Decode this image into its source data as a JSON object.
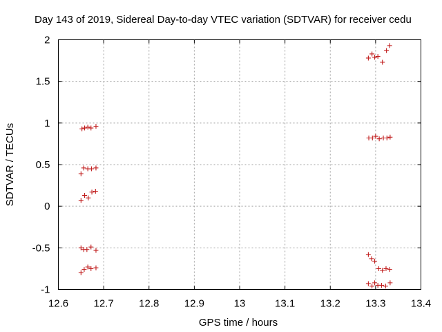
{
  "chart_data": {
    "type": "scatter",
    "title": "Day 143 of 2019, Sidereal Day-to-day VTEC variation (SDTVAR) for receiver cedu",
    "xlabel": "GPS time / hours",
    "ylabel": "SDTVAR / TECUs",
    "xlim": [
      12.6,
      13.4
    ],
    "ylim": [
      -1,
      2
    ],
    "x_ticks": [
      "12.6",
      "12.7",
      "12.8",
      "12.9",
      "13",
      "13.1",
      "13.2",
      "13.3",
      "13.4"
    ],
    "y_ticks": [
      "-1",
      "-0.5",
      "0",
      "0.5",
      "1",
      "1.5",
      "2"
    ],
    "grid": true,
    "marker": "+",
    "marker_color": "#c01a1a",
    "series": [
      {
        "name": "SDTVAR",
        "points": [
          [
            12.652,
            0.93
          ],
          [
            12.658,
            0.94
          ],
          [
            12.665,
            0.95
          ],
          [
            12.672,
            0.94
          ],
          [
            12.683,
            0.96
          ],
          [
            12.65,
            0.39
          ],
          [
            12.656,
            0.46
          ],
          [
            12.665,
            0.45
          ],
          [
            12.673,
            0.45
          ],
          [
            12.683,
            0.46
          ],
          [
            12.65,
            0.07
          ],
          [
            12.658,
            0.13
          ],
          [
            12.666,
            0.1
          ],
          [
            12.674,
            0.17
          ],
          [
            12.682,
            0.18
          ],
          [
            12.65,
            -0.5
          ],
          [
            12.656,
            -0.52
          ],
          [
            12.663,
            -0.52
          ],
          [
            12.672,
            -0.49
          ],
          [
            12.683,
            -0.53
          ],
          [
            12.65,
            -0.8
          ],
          [
            12.657,
            -0.76
          ],
          [
            12.665,
            -0.73
          ],
          [
            12.672,
            -0.75
          ],
          [
            12.683,
            -0.74
          ],
          [
            13.284,
            1.78
          ],
          [
            13.292,
            1.83
          ],
          [
            13.298,
            1.79
          ],
          [
            13.305,
            1.8
          ],
          [
            13.315,
            1.73
          ],
          [
            13.324,
            1.87
          ],
          [
            13.331,
            1.93
          ],
          [
            13.285,
            0.82
          ],
          [
            13.293,
            0.82
          ],
          [
            13.3,
            0.84
          ],
          [
            13.308,
            0.81
          ],
          [
            13.317,
            0.82
          ],
          [
            13.325,
            0.82
          ],
          [
            13.332,
            0.83
          ],
          [
            13.284,
            -0.58
          ],
          [
            13.291,
            -0.63
          ],
          [
            13.298,
            -0.66
          ],
          [
            13.307,
            -0.75
          ],
          [
            13.315,
            -0.77
          ],
          [
            13.323,
            -0.75
          ],
          [
            13.331,
            -0.76
          ],
          [
            13.284,
            -0.93
          ],
          [
            13.292,
            -0.96
          ],
          [
            13.298,
            -0.92
          ],
          [
            13.305,
            -0.95
          ],
          [
            13.313,
            -0.95
          ],
          [
            13.322,
            -0.96
          ],
          [
            13.332,
            -0.92
          ]
        ]
      }
    ]
  }
}
